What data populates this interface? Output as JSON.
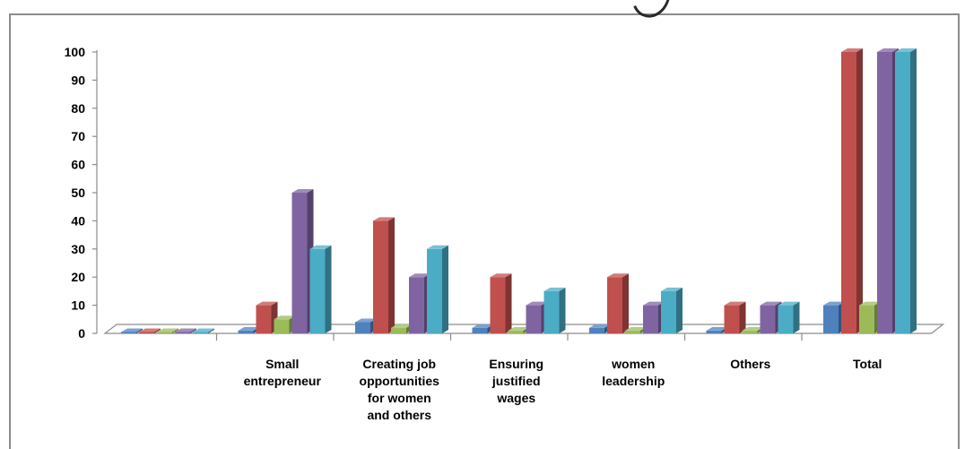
{
  "chart_data": {
    "type": "bar",
    "style": "3d-clustered-column",
    "categories": [
      "",
      "Small entrepreneur",
      "Creating job opportunities for women and others",
      "Ensuring justified wages",
      "women leadership",
      "Others",
      "Total"
    ],
    "category_label_lines": [
      [],
      [
        "Small",
        "entrepreneur"
      ],
      [
        "Creating job",
        "opportunities",
        "for women",
        "and others"
      ],
      [
        "Ensuring",
        "justified",
        "wages"
      ],
      [
        "women",
        "leadership"
      ],
      [
        "Others"
      ],
      [
        "Total"
      ]
    ],
    "series": [
      {
        "color": "#4f81bd",
        "values": [
          0,
          1,
          4,
          2,
          2,
          1,
          10
        ]
      },
      {
        "color": "#c0504d",
        "values": [
          0,
          10,
          40,
          20,
          20,
          10,
          100
        ]
      },
      {
        "color": "#9bbb59",
        "values": [
          0,
          5,
          2,
          1,
          1,
          1,
          10
        ]
      },
      {
        "color": "#8064a2",
        "values": [
          0,
          50,
          20,
          10,
          10,
          10,
          100
        ]
      },
      {
        "color": "#4bacc6",
        "values": [
          0,
          30,
          30,
          15,
          15,
          10,
          100
        ]
      }
    ],
    "yticks": [
      "0",
      "10",
      "20",
      "30",
      "40",
      "50",
      "60",
      "70",
      "80",
      "90",
      "100"
    ],
    "ylim": [
      0,
      100
    ],
    "grid": false,
    "legend": "none",
    "title": "",
    "xlabel": "",
    "ylabel": ""
  }
}
